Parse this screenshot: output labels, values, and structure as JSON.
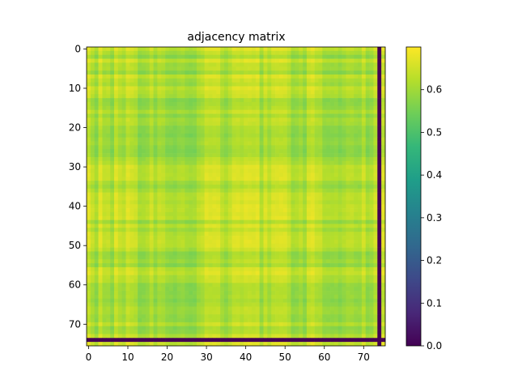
{
  "chart_data": {
    "type": "heatmap",
    "title": "adjacency matrix",
    "matrix_size": 76,
    "zero_index": 74,
    "x_ticks": [
      0,
      10,
      20,
      30,
      40,
      50,
      60,
      70
    ],
    "y_ticks": [
      0,
      10,
      20,
      30,
      40,
      50,
      60,
      70
    ],
    "colorbar": {
      "min": 0.0,
      "max": 0.7,
      "ticks": [
        "0.0",
        "0.1",
        "0.2",
        "0.3",
        "0.4",
        "0.5",
        "0.6"
      ]
    },
    "value_range_nonzero": [
      0.55,
      0.68
    ],
    "colormap": "viridis",
    "colormap_stops": [
      "#440154",
      "#482878",
      "#3e4989",
      "#31688e",
      "#26828e",
      "#1f9e89",
      "#35b779",
      "#6ece58",
      "#b5de2b",
      "#fde725"
    ]
  }
}
